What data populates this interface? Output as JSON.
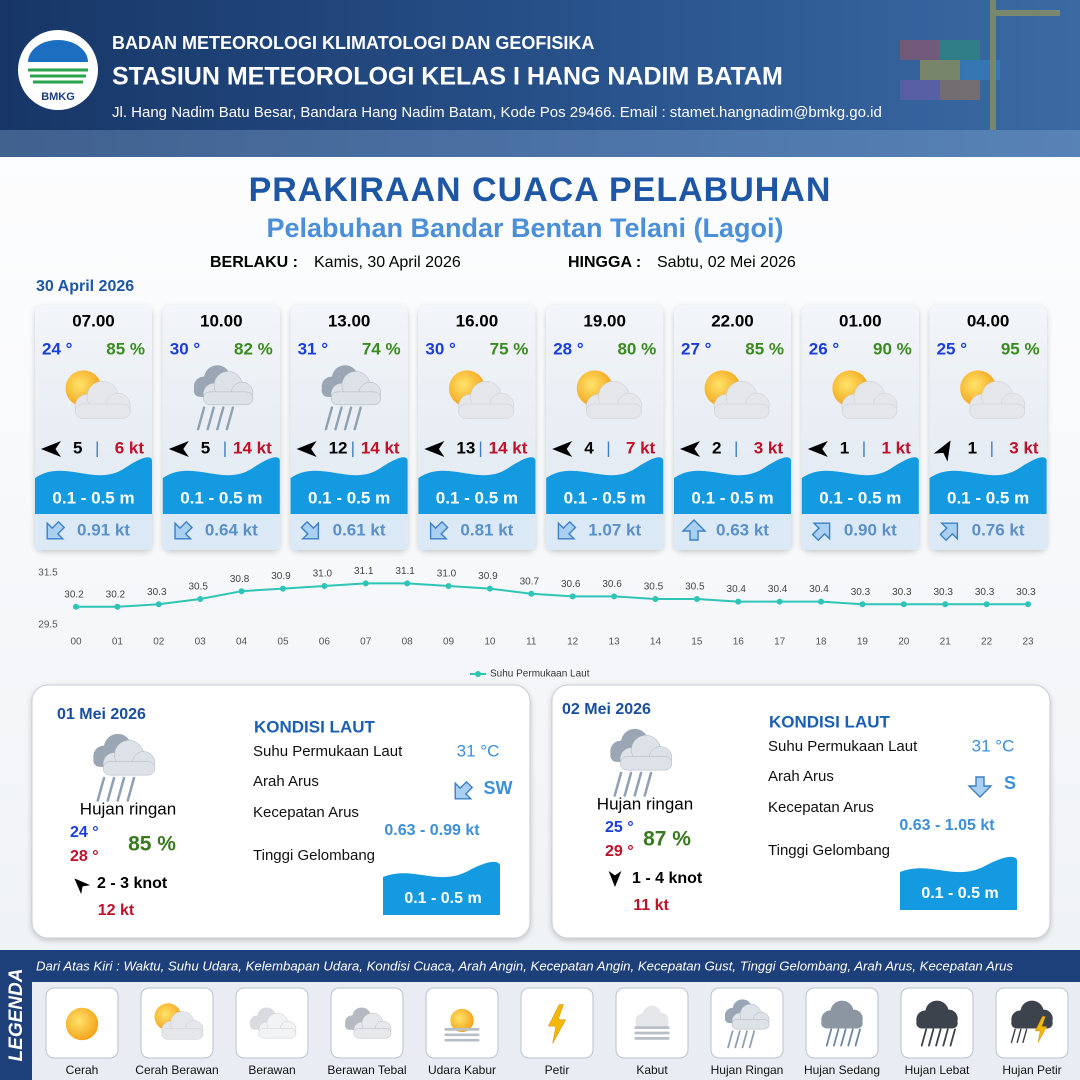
{
  "header": {
    "logo": "BMKG",
    "agency": "BADAN METEOROLOGI KLIMATOLOGI DAN GEOFISIKA",
    "station": "STASIUN METEOROLOGI KELAS I HANG NADIM BATAM",
    "address": "Jl. Hang Nadim Batu Besar, Bandara Hang Nadim Batam, Kode Pos 29466. Email : stamet.hangnadim@bmkg.go.id"
  },
  "title": "PRAKIRAAN CUACA PELABUHAN",
  "subtitle": "Pelabuhan Bandar Bentan Telani (Lagoi)",
  "validity": {
    "from_label": "BERLAKU :",
    "from": "Kamis, 30 April 2026",
    "to_label": "HINGGA :",
    "to": "Sabtu, 02 Mei 2026"
  },
  "day_label": "30 April 2026",
  "forecasts": [
    {
      "time": "07.00",
      "temp": "24 °",
      "humidity": "85 %",
      "wind": "5",
      "gust": "6 kt",
      "wave": "0.1 - 0.5 m",
      "current": "0.91 kt"
    },
    {
      "time": "10.00",
      "temp": "30 °",
      "humidity": "82 %",
      "wind": "5",
      "gust": "14 kt",
      "wave": "0.1 - 0.5 m",
      "current": "0.64 kt"
    },
    {
      "time": "13.00",
      "temp": "31 °",
      "humidity": "74 %",
      "wind": "12",
      "gust": "14 kt",
      "wave": "0.1 - 0.5 m",
      "current": "0.61 kt"
    },
    {
      "time": "16.00",
      "temp": "30 °",
      "humidity": "75 %",
      "wind": "13",
      "gust": "14 kt",
      "wave": "0.1 - 0.5 m",
      "current": "0.81 kt"
    },
    {
      "time": "19.00",
      "temp": "28 °",
      "humidity": "80 %",
      "wind": "4",
      "gust": "7 kt",
      "wave": "0.1 - 0.5 m",
      "current": "1.07 kt"
    },
    {
      "time": "22.00",
      "temp": "27 °",
      "humidity": "85 %",
      "wind": "2",
      "gust": "3 kt",
      "wave": "0.1 - 0.5 m",
      "current": "0.63 kt"
    },
    {
      "time": "01.00",
      "temp": "26 °",
      "humidity": "90 %",
      "wind": "1",
      "gust": "1 kt",
      "wave": "0.1 - 0.5 m",
      "current": "0.90 kt"
    },
    {
      "time": "04.00",
      "temp": "25 °",
      "humidity": "95 %",
      "wind": "1",
      "gust": "3 kt",
      "wave": "0.1 - 0.5 m",
      "current": "0.76 kt"
    }
  ],
  "chart_data": {
    "type": "line",
    "categories": [
      "00",
      "01",
      "02",
      "03",
      "04",
      "05",
      "06",
      "07",
      "08",
      "09",
      "10",
      "11",
      "12",
      "13",
      "14",
      "15",
      "16",
      "17",
      "18",
      "19",
      "20",
      "21",
      "22",
      "23"
    ],
    "series": [
      {
        "name": "Suhu Permukaan Laut",
        "color": "#2ec4b6",
        "values": [
          30.2,
          30.2,
          30.3,
          30.5,
          30.8,
          30.9,
          31.0,
          31.1,
          31.1,
          31.0,
          30.9,
          30.7,
          30.6,
          30.6,
          30.5,
          30.5,
          30.4,
          30.4,
          30.4,
          30.3,
          30.3,
          30.3,
          30.3,
          30.3
        ],
        "value_labels": [
          "30.2",
          "30.2",
          "30.3",
          "30.5",
          "30.8",
          "30.9",
          "31.0",
          "31.1",
          "31.1",
          "31.0",
          "30.9",
          "30.7",
          "30.6",
          "30.6",
          "30.5",
          "30.5",
          "30.4",
          "30.4",
          "30.4",
          "30.3",
          "30.3",
          "30.3",
          "30.3",
          "30.3"
        ]
      }
    ],
    "ylim": [
      29.5,
      31.5
    ],
    "yticks": [
      29.5,
      31.5
    ],
    "grid": false,
    "legend": "bottom"
  },
  "daily": [
    {
      "date": "01 Mei 2026",
      "condition": "Hujan ringan",
      "temp_min": "24 °",
      "temp_max": "28 °",
      "humidity": "85 %",
      "wind": "2  - 3 knot",
      "gust": "12 kt",
      "heading": "KONDISI LAUT",
      "sst_label": "Suhu Permukaan Laut",
      "sst": "31 °C",
      "current_dir_label": "Arah Arus",
      "current_dir": "SW",
      "current_speed_label": "Kecepatan Arus",
      "current_speed": "0.63  - 0.99 kt",
      "wave_label": "Tinggi Gelombang",
      "wave": "0.1 - 0.5 m"
    },
    {
      "date": "02 Mei 2026",
      "condition": "Hujan ringan",
      "temp_min": "25 °",
      "temp_max": "29 °",
      "humidity": "87 %",
      "wind": "1  - 4 knot",
      "gust": "11 kt",
      "heading": "KONDISI LAUT",
      "sst_label": "Suhu Permukaan Laut",
      "sst": "31 °C",
      "current_dir_label": "Arah Arus",
      "current_dir": "S",
      "current_speed_label": "Kecepatan Arus",
      "current_speed": "0.63  - 1.05 kt",
      "wave_label": "Tinggi Gelombang",
      "wave": "0.1 - 0.5 m"
    }
  ],
  "legend": {
    "title": "LEGENDA",
    "description": "Dari Atas Kiri : Waktu, Suhu Udara, Kelembapan Udara, Kondisi Cuaca, Arah Angin, Kecepatan Angin, Kecepatan Gust, Tinggi Gelombang, Arah Arus, Kecepatan Arus",
    "items": [
      "Cerah",
      "Cerah Berawan",
      "Berawan",
      "Berawan Tebal",
      "Udara Kabur",
      "Petir",
      "Kabut",
      "Hujan Ringan",
      "Hujan Sedang",
      "Hujan Lebat",
      "Hujan Petir"
    ]
  }
}
